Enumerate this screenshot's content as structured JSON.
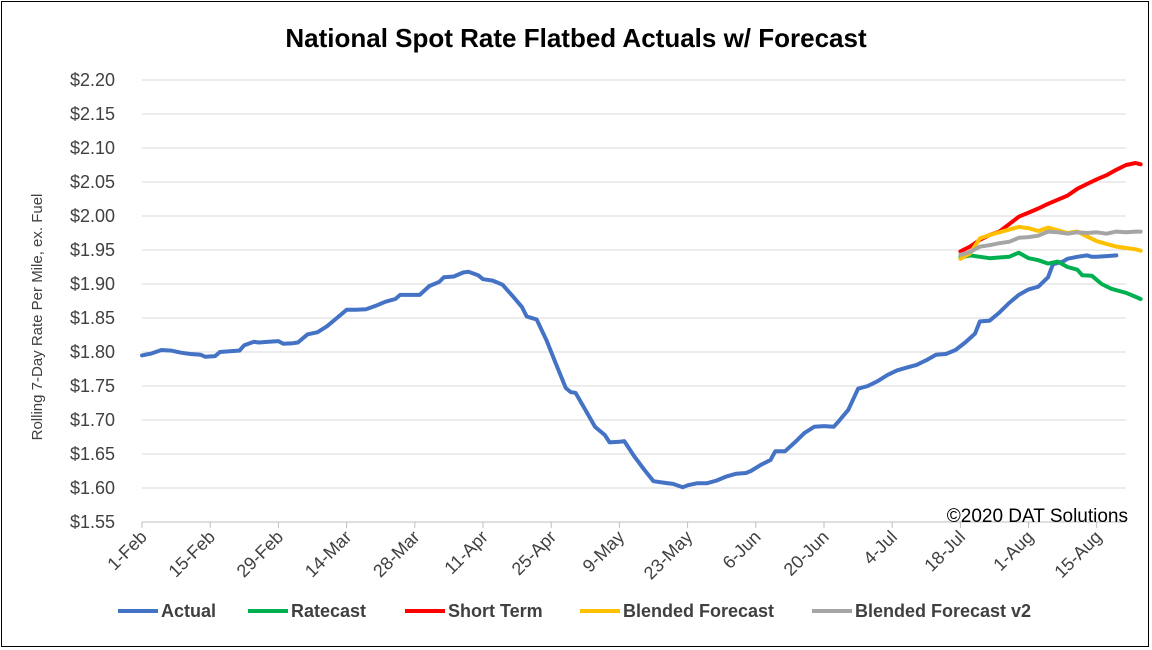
{
  "chart_data": {
    "type": "line",
    "title": "National Spot Rate Flatbed Actuals w/ Forecast",
    "xlabel": "",
    "ylabel": "Rolling 7-Day Rate Per Mile, ex. Fuel",
    "ylim": [
      1.55,
      2.2
    ],
    "yticks": [
      1.55,
      1.6,
      1.65,
      1.7,
      1.75,
      1.8,
      1.85,
      1.9,
      1.95,
      2.0,
      2.05,
      2.1,
      2.15,
      2.2
    ],
    "ytick_labels": [
      "$1.55",
      "$1.60",
      "$1.65",
      "$1.70",
      "$1.75",
      "$1.80",
      "$1.85",
      "$1.90",
      "$1.95",
      "$2.00",
      "$2.05",
      "$2.10",
      "$2.15",
      "$2.20"
    ],
    "x_start": "2020-02-01",
    "x_end": "2020-08-21",
    "xtick_labels": [
      "1-Feb",
      "15-Feb",
      "29-Feb",
      "14-Mar",
      "28-Mar",
      "11-Apr",
      "25-Apr",
      "9-May",
      "23-May",
      "6-Jun",
      "20-Jun",
      "4-Jul",
      "18-Jul",
      "1-Aug",
      "15-Aug"
    ],
    "xtick_dates": [
      "2020-02-01",
      "2020-02-15",
      "2020-02-29",
      "2020-03-14",
      "2020-03-28",
      "2020-04-11",
      "2020-04-25",
      "2020-05-09",
      "2020-05-23",
      "2020-06-06",
      "2020-06-20",
      "2020-07-04",
      "2020-07-18",
      "2020-08-01",
      "2020-08-15"
    ],
    "grid": true,
    "legend_position": "bottom",
    "annotation": "©2020 DAT Solutions",
    "series": [
      {
        "name": "Actual",
        "color": "#4472C4",
        "points": [
          [
            "2020-02-01",
            1.795
          ],
          [
            "2020-02-03",
            1.798
          ],
          [
            "2020-02-05",
            1.803
          ],
          [
            "2020-02-07",
            1.802
          ],
          [
            "2020-02-09",
            1.799
          ],
          [
            "2020-02-11",
            1.797
          ],
          [
            "2020-02-13",
            1.796
          ],
          [
            "2020-02-14",
            1.793
          ],
          [
            "2020-02-16",
            1.794
          ],
          [
            "2020-02-17",
            1.8
          ],
          [
            "2020-02-19",
            1.801
          ],
          [
            "2020-02-21",
            1.802
          ],
          [
            "2020-02-22",
            1.81
          ],
          [
            "2020-02-24",
            1.815
          ],
          [
            "2020-02-25",
            1.814
          ],
          [
            "2020-02-27",
            1.815
          ],
          [
            "2020-02-29",
            1.816
          ],
          [
            "2020-03-01",
            1.812
          ],
          [
            "2020-03-03",
            1.813
          ],
          [
            "2020-03-04",
            1.814
          ],
          [
            "2020-03-06",
            1.826
          ],
          [
            "2020-03-08",
            1.829
          ],
          [
            "2020-03-10",
            1.838
          ],
          [
            "2020-03-12",
            1.85
          ],
          [
            "2020-03-14",
            1.862
          ],
          [
            "2020-03-16",
            1.862
          ],
          [
            "2020-03-18",
            1.863
          ],
          [
            "2020-03-20",
            1.868
          ],
          [
            "2020-03-22",
            1.874
          ],
          [
            "2020-03-24",
            1.878
          ],
          [
            "2020-03-25",
            1.884
          ],
          [
            "2020-03-27",
            1.884
          ],
          [
            "2020-03-29",
            1.884
          ],
          [
            "2020-03-31",
            1.897
          ],
          [
            "2020-04-02",
            1.903
          ],
          [
            "2020-04-03",
            1.91
          ],
          [
            "2020-04-05",
            1.911
          ],
          [
            "2020-04-07",
            1.917
          ],
          [
            "2020-04-08",
            1.918
          ],
          [
            "2020-04-10",
            1.913
          ],
          [
            "2020-04-11",
            1.907
          ],
          [
            "2020-04-13",
            1.905
          ],
          [
            "2020-04-15",
            1.899
          ],
          [
            "2020-04-17",
            1.883
          ],
          [
            "2020-04-19",
            1.866
          ],
          [
            "2020-04-20",
            1.852
          ],
          [
            "2020-04-22",
            1.848
          ],
          [
            "2020-04-24",
            1.818
          ],
          [
            "2020-04-26",
            1.782
          ],
          [
            "2020-04-28",
            1.747
          ],
          [
            "2020-04-29",
            1.741
          ],
          [
            "2020-04-30",
            1.74
          ],
          [
            "2020-05-02",
            1.715
          ],
          [
            "2020-05-04",
            1.69
          ],
          [
            "2020-05-06",
            1.678
          ],
          [
            "2020-05-07",
            1.667
          ],
          [
            "2020-05-09",
            1.668
          ],
          [
            "2020-05-10",
            1.669
          ],
          [
            "2020-05-12",
            1.647
          ],
          [
            "2020-05-14",
            1.628
          ],
          [
            "2020-05-16",
            1.61
          ],
          [
            "2020-05-18",
            1.608
          ],
          [
            "2020-05-20",
            1.606
          ],
          [
            "2020-05-22",
            1.601
          ],
          [
            "2020-05-23",
            1.604
          ],
          [
            "2020-05-25",
            1.607
          ],
          [
            "2020-05-27",
            1.607
          ],
          [
            "2020-05-29",
            1.611
          ],
          [
            "2020-05-31",
            1.617
          ],
          [
            "2020-06-02",
            1.621
          ],
          [
            "2020-06-04",
            1.622
          ],
          [
            "2020-06-05",
            1.625
          ],
          [
            "2020-06-07",
            1.634
          ],
          [
            "2020-06-09",
            1.641
          ],
          [
            "2020-06-10",
            1.654
          ],
          [
            "2020-06-12",
            1.654
          ],
          [
            "2020-06-14",
            1.667
          ],
          [
            "2020-06-16",
            1.681
          ],
          [
            "2020-06-18",
            1.69
          ],
          [
            "2020-06-20",
            1.691
          ],
          [
            "2020-06-22",
            1.69
          ],
          [
            "2020-06-23",
            1.698
          ],
          [
            "2020-06-25",
            1.715
          ],
          [
            "2020-06-27",
            1.746
          ],
          [
            "2020-06-29",
            1.75
          ],
          [
            "2020-07-01",
            1.757
          ],
          [
            "2020-07-03",
            1.766
          ],
          [
            "2020-07-05",
            1.773
          ],
          [
            "2020-07-07",
            1.777
          ],
          [
            "2020-07-09",
            1.781
          ],
          [
            "2020-07-11",
            1.788
          ],
          [
            "2020-07-13",
            1.796
          ],
          [
            "2020-07-15",
            1.797
          ],
          [
            "2020-07-17",
            1.803
          ],
          [
            "2020-07-19",
            1.814
          ],
          [
            "2020-07-21",
            1.827
          ],
          [
            "2020-07-22",
            1.845
          ],
          [
            "2020-07-24",
            1.846
          ],
          [
            "2020-07-26",
            1.858
          ],
          [
            "2020-07-28",
            1.872
          ],
          [
            "2020-07-30",
            1.884
          ],
          [
            "2020-08-01",
            1.892
          ],
          [
            "2020-08-03",
            1.896
          ],
          [
            "2020-08-05",
            1.91
          ],
          [
            "2020-08-06",
            1.929
          ],
          [
            "2020-08-08",
            1.933
          ],
          [
            "2020-08-09",
            1.937
          ],
          [
            "2020-08-11",
            1.94
          ],
          [
            "2020-08-13",
            1.942
          ],
          [
            "2020-08-14",
            1.94
          ],
          [
            "2020-08-15",
            1.94
          ],
          [
            "2020-08-17",
            1.941
          ],
          [
            "2020-08-19",
            1.942
          ]
        ]
      },
      {
        "name": "Ratecast",
        "color": "#00B050",
        "points": [
          [
            "2020-07-18",
            1.939
          ],
          [
            "2020-07-20",
            1.942
          ],
          [
            "2020-07-22",
            1.94
          ],
          [
            "2020-07-24",
            1.938
          ],
          [
            "2020-07-26",
            1.939
          ],
          [
            "2020-07-28",
            1.94
          ],
          [
            "2020-07-30",
            1.946
          ],
          [
            "2020-08-01",
            1.938
          ],
          [
            "2020-08-03",
            1.935
          ],
          [
            "2020-08-05",
            1.93
          ],
          [
            "2020-08-07",
            1.933
          ],
          [
            "2020-08-09",
            1.925
          ],
          [
            "2020-08-11",
            1.921
          ],
          [
            "2020-08-12",
            1.913
          ],
          [
            "2020-08-14",
            1.912
          ],
          [
            "2020-08-16",
            1.9
          ],
          [
            "2020-08-18",
            1.893
          ],
          [
            "2020-08-20",
            1.889
          ],
          [
            "2020-08-21",
            1.887
          ],
          [
            "2020-08-23",
            1.881
          ],
          [
            "2020-08-24",
            1.878
          ]
        ]
      },
      {
        "name": "Short Term",
        "color": "#FF0000",
        "points": [
          [
            "2020-07-18",
            1.948
          ],
          [
            "2020-07-20",
            1.955
          ],
          [
            "2020-07-22",
            1.965
          ],
          [
            "2020-07-24",
            1.972
          ],
          [
            "2020-07-26",
            1.977
          ],
          [
            "2020-07-28",
            1.988
          ],
          [
            "2020-07-30",
            1.999
          ],
          [
            "2020-08-01",
            2.005
          ],
          [
            "2020-08-03",
            2.011
          ],
          [
            "2020-08-05",
            2.018
          ],
          [
            "2020-08-07",
            2.024
          ],
          [
            "2020-08-09",
            2.03
          ],
          [
            "2020-08-11",
            2.04
          ],
          [
            "2020-08-13",
            2.047
          ],
          [
            "2020-08-15",
            2.054
          ],
          [
            "2020-08-17",
            2.06
          ],
          [
            "2020-08-19",
            2.068
          ],
          [
            "2020-08-21",
            2.075
          ],
          [
            "2020-08-23",
            2.078
          ],
          [
            "2020-08-24",
            2.076
          ]
        ]
      },
      {
        "name": "Blended Forecast",
        "color": "#FFC000",
        "points": [
          [
            "2020-07-18",
            1.937
          ],
          [
            "2020-07-20",
            1.945
          ],
          [
            "2020-07-22",
            1.967
          ],
          [
            "2020-07-24",
            1.972
          ],
          [
            "2020-07-26",
            1.976
          ],
          [
            "2020-07-28",
            1.98
          ],
          [
            "2020-07-30",
            1.984
          ],
          [
            "2020-08-01",
            1.982
          ],
          [
            "2020-08-03",
            1.978
          ],
          [
            "2020-08-05",
            1.983
          ],
          [
            "2020-08-07",
            1.979
          ],
          [
            "2020-08-09",
            1.975
          ],
          [
            "2020-08-11",
            1.977
          ],
          [
            "2020-08-13",
            1.97
          ],
          [
            "2020-08-15",
            1.963
          ],
          [
            "2020-08-17",
            1.959
          ],
          [
            "2020-08-19",
            1.955
          ],
          [
            "2020-08-21",
            1.953
          ],
          [
            "2020-08-23",
            1.951
          ],
          [
            "2020-08-24",
            1.949
          ]
        ]
      },
      {
        "name": "Blended Forecast v2",
        "color": "#A5A5A5",
        "points": [
          [
            "2020-07-18",
            1.943
          ],
          [
            "2020-07-20",
            1.947
          ],
          [
            "2020-07-22",
            1.955
          ],
          [
            "2020-07-24",
            1.957
          ],
          [
            "2020-07-26",
            1.96
          ],
          [
            "2020-07-28",
            1.962
          ],
          [
            "2020-07-30",
            1.968
          ],
          [
            "2020-08-01",
            1.969
          ],
          [
            "2020-08-03",
            1.971
          ],
          [
            "2020-08-05",
            1.977
          ],
          [
            "2020-08-07",
            1.976
          ],
          [
            "2020-08-09",
            1.974
          ],
          [
            "2020-08-11",
            1.976
          ],
          [
            "2020-08-13",
            1.975
          ],
          [
            "2020-08-15",
            1.976
          ],
          [
            "2020-08-17",
            1.974
          ],
          [
            "2020-08-19",
            1.977
          ],
          [
            "2020-08-21",
            1.976
          ],
          [
            "2020-08-23",
            1.977
          ],
          [
            "2020-08-24",
            1.977
          ]
        ]
      }
    ]
  }
}
